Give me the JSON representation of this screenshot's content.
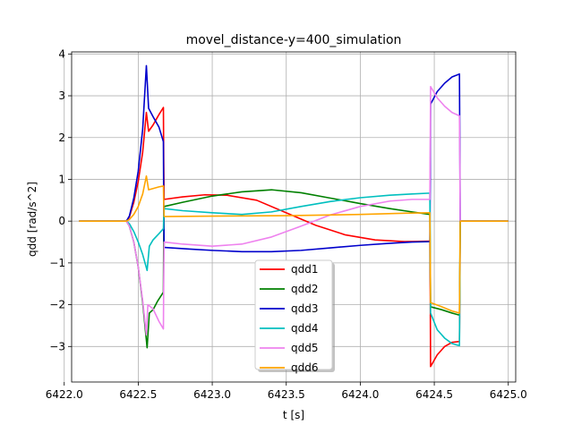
{
  "chart_data": {
    "type": "line",
    "title": "movel_distance-y=400_simulation",
    "xlabel": "t [s]",
    "ylabel": "qdd [rad/s^2]",
    "xlim": [
      6422.05,
      6425.05
    ],
    "ylim": [
      -3.85,
      4.05
    ],
    "grid": true,
    "legend_position": "lower-center",
    "xticks": [
      6422.0,
      6422.5,
      6423.0,
      6423.5,
      6424.0,
      6424.5,
      6425.0
    ],
    "xtick_labels": [
      "6422.0",
      "6422.5",
      "6423.0",
      "6423.5",
      "6424.0",
      "6424.5",
      "6425.0"
    ],
    "yticks": [
      -3,
      -2,
      -1,
      0,
      1,
      2,
      3,
      4
    ],
    "ytick_labels": [
      "−3",
      "−2",
      "−1",
      "0",
      "1",
      "2",
      "3",
      "4"
    ],
    "series": [
      {
        "name": "qdd1",
        "color": "#ff0000",
        "points": [
          [
            6422.1,
            0
          ],
          [
            6422.42,
            0
          ],
          [
            6422.44,
            0.1
          ],
          [
            6422.47,
            0.45
          ],
          [
            6422.5,
            0.95
          ],
          [
            6422.53,
            1.65
          ],
          [
            6422.555,
            2.6
          ],
          [
            6422.57,
            2.15
          ],
          [
            6422.6,
            2.3
          ],
          [
            6422.64,
            2.55
          ],
          [
            6422.67,
            2.72
          ],
          [
            6422.672,
            1.5
          ],
          [
            6422.675,
            0.52
          ],
          [
            6422.8,
            0.58
          ],
          [
            6422.95,
            0.63
          ],
          [
            6423.1,
            0.62
          ],
          [
            6423.3,
            0.5
          ],
          [
            6423.5,
            0.2
          ],
          [
            6423.7,
            -0.1
          ],
          [
            6423.9,
            -0.33
          ],
          [
            6424.1,
            -0.45
          ],
          [
            6424.3,
            -0.49
          ],
          [
            6424.47,
            -0.48
          ],
          [
            6424.473,
            -1.8
          ],
          [
            6424.475,
            -3.48
          ],
          [
            6424.52,
            -3.2
          ],
          [
            6424.57,
            -3.0
          ],
          [
            6424.62,
            -2.9
          ],
          [
            6424.67,
            -2.88
          ],
          [
            6424.673,
            -1.5
          ],
          [
            6424.675,
            0
          ],
          [
            6425.0,
            0
          ]
        ]
      },
      {
        "name": "qdd2",
        "color": "#008000",
        "points": [
          [
            6422.1,
            0
          ],
          [
            6422.42,
            0
          ],
          [
            6422.44,
            -0.12
          ],
          [
            6422.47,
            -0.5
          ],
          [
            6422.5,
            -1.1
          ],
          [
            6422.53,
            -1.95
          ],
          [
            6422.56,
            -3.03
          ],
          [
            6422.575,
            -2.2
          ],
          [
            6422.6,
            -2.12
          ],
          [
            6422.63,
            -1.92
          ],
          [
            6422.67,
            -1.7
          ],
          [
            6422.672,
            -0.5
          ],
          [
            6422.675,
            0.35
          ],
          [
            6422.8,
            0.45
          ],
          [
            6423.0,
            0.6
          ],
          [
            6423.2,
            0.7
          ],
          [
            6423.4,
            0.75
          ],
          [
            6423.6,
            0.68
          ],
          [
            6423.8,
            0.55
          ],
          [
            6424.0,
            0.42
          ],
          [
            6424.2,
            0.3
          ],
          [
            6424.35,
            0.22
          ],
          [
            6424.47,
            0.16
          ],
          [
            6424.473,
            -1.0
          ],
          [
            6424.475,
            -2.05
          ],
          [
            6424.55,
            -2.12
          ],
          [
            6424.62,
            -2.2
          ],
          [
            6424.67,
            -2.25
          ],
          [
            6424.673,
            -1.0
          ],
          [
            6424.675,
            0
          ],
          [
            6425.0,
            0
          ]
        ]
      },
      {
        "name": "qdd3",
        "color": "#0000cc",
        "points": [
          [
            6422.1,
            0
          ],
          [
            6422.42,
            0
          ],
          [
            6422.44,
            0.12
          ],
          [
            6422.47,
            0.55
          ],
          [
            6422.5,
            1.2
          ],
          [
            6422.53,
            2.2
          ],
          [
            6422.555,
            3.72
          ],
          [
            6422.57,
            2.7
          ],
          [
            6422.6,
            2.5
          ],
          [
            6422.64,
            2.25
          ],
          [
            6422.67,
            1.9
          ],
          [
            6422.672,
            0.5
          ],
          [
            6422.675,
            -0.63
          ],
          [
            6422.85,
            -0.67
          ],
          [
            6423.0,
            -0.7
          ],
          [
            6423.2,
            -0.73
          ],
          [
            6423.4,
            -0.73
          ],
          [
            6423.6,
            -0.7
          ],
          [
            6423.8,
            -0.64
          ],
          [
            6424.0,
            -0.58
          ],
          [
            6424.2,
            -0.53
          ],
          [
            6424.35,
            -0.5
          ],
          [
            6424.47,
            -0.49
          ],
          [
            6424.473,
            1.0
          ],
          [
            6424.475,
            2.8
          ],
          [
            6424.52,
            3.1
          ],
          [
            6424.57,
            3.3
          ],
          [
            6424.62,
            3.45
          ],
          [
            6424.67,
            3.52
          ],
          [
            6424.673,
            1.5
          ],
          [
            6424.675,
            0
          ],
          [
            6425.0,
            0
          ]
        ]
      },
      {
        "name": "qdd4",
        "color": "#00bfbf",
        "points": [
          [
            6422.1,
            0
          ],
          [
            6422.42,
            0
          ],
          [
            6422.44,
            -0.06
          ],
          [
            6422.47,
            -0.25
          ],
          [
            6422.5,
            -0.5
          ],
          [
            6422.53,
            -0.8
          ],
          [
            6422.56,
            -1.18
          ],
          [
            6422.575,
            -0.6
          ],
          [
            6422.6,
            -0.45
          ],
          [
            6422.64,
            -0.3
          ],
          [
            6422.67,
            -0.18
          ],
          [
            6422.672,
            0.1
          ],
          [
            6422.675,
            0.3
          ],
          [
            6422.8,
            0.25
          ],
          [
            6423.0,
            0.2
          ],
          [
            6423.2,
            0.16
          ],
          [
            6423.4,
            0.22
          ],
          [
            6423.6,
            0.35
          ],
          [
            6423.8,
            0.47
          ],
          [
            6424.0,
            0.56
          ],
          [
            6424.2,
            0.62
          ],
          [
            6424.35,
            0.65
          ],
          [
            6424.47,
            0.67
          ],
          [
            6424.473,
            -0.8
          ],
          [
            6424.475,
            -2.2
          ],
          [
            6424.52,
            -2.6
          ],
          [
            6424.57,
            -2.8
          ],
          [
            6424.62,
            -2.93
          ],
          [
            6424.67,
            -2.98
          ],
          [
            6424.673,
            -1.5
          ],
          [
            6424.675,
            0
          ],
          [
            6425.0,
            0
          ]
        ]
      },
      {
        "name": "qdd5",
        "color": "#ee82ee",
        "points": [
          [
            6422.1,
            0
          ],
          [
            6422.42,
            0
          ],
          [
            6422.44,
            -0.12
          ],
          [
            6422.47,
            -0.5
          ],
          [
            6422.5,
            -1.1
          ],
          [
            6422.53,
            -1.9
          ],
          [
            6422.555,
            -2.72
          ],
          [
            6422.565,
            -2.0
          ],
          [
            6422.6,
            -2.1
          ],
          [
            6422.64,
            -2.4
          ],
          [
            6422.67,
            -2.58
          ],
          [
            6422.672,
            -1.5
          ],
          [
            6422.675,
            -0.5
          ],
          [
            6422.8,
            -0.55
          ],
          [
            6423.0,
            -0.6
          ],
          [
            6423.2,
            -0.55
          ],
          [
            6423.4,
            -0.38
          ],
          [
            6423.6,
            -0.12
          ],
          [
            6423.8,
            0.15
          ],
          [
            6424.0,
            0.35
          ],
          [
            6424.2,
            0.48
          ],
          [
            6424.35,
            0.52
          ],
          [
            6424.47,
            0.52
          ],
          [
            6424.473,
            2.0
          ],
          [
            6424.475,
            3.22
          ],
          [
            6424.52,
            2.95
          ],
          [
            6424.57,
            2.75
          ],
          [
            6424.62,
            2.6
          ],
          [
            6424.67,
            2.52
          ],
          [
            6424.673,
            1.2
          ],
          [
            6424.675,
            0
          ],
          [
            6425.0,
            0
          ]
        ]
      },
      {
        "name": "qdd6",
        "color": "#ffa500",
        "points": [
          [
            6422.1,
            0
          ],
          [
            6422.42,
            0
          ],
          [
            6422.44,
            0.04
          ],
          [
            6422.47,
            0.16
          ],
          [
            6422.5,
            0.35
          ],
          [
            6422.53,
            0.65
          ],
          [
            6422.555,
            1.08
          ],
          [
            6422.57,
            0.75
          ],
          [
            6422.6,
            0.78
          ],
          [
            6422.64,
            0.82
          ],
          [
            6422.67,
            0.84
          ],
          [
            6422.672,
            0.4
          ],
          [
            6422.675,
            0.11
          ],
          [
            6423.0,
            0.12
          ],
          [
            6423.5,
            0.13
          ],
          [
            6424.0,
            0.16
          ],
          [
            6424.3,
            0.19
          ],
          [
            6424.47,
            0.2
          ],
          [
            6424.473,
            -0.9
          ],
          [
            6424.475,
            -1.95
          ],
          [
            6424.55,
            -2.05
          ],
          [
            6424.62,
            -2.15
          ],
          [
            6424.67,
            -2.2
          ],
          [
            6424.673,
            -1.0
          ],
          [
            6424.675,
            0
          ],
          [
            6425.0,
            0
          ]
        ]
      }
    ]
  }
}
